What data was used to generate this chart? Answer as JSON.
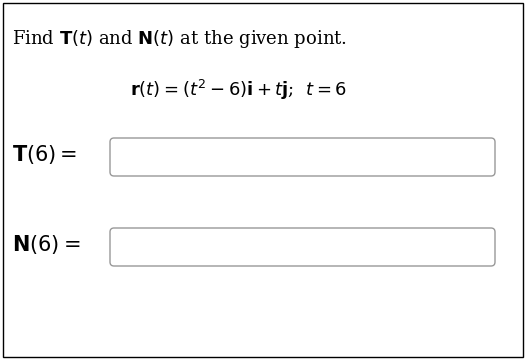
{
  "title_line1": "Find ",
  "title_bold_T": "T",
  "title_mid1": "(t) and ",
  "title_bold_N": "N",
  "title_mid2": "(t) at the given point.",
  "bg_color": "#ffffff",
  "border_color": "#000000",
  "box_line_color": "#999999",
  "text_color": "#000000",
  "title_fontsize": 13,
  "eq_fontsize": 13,
  "label_fontsize": 15,
  "fig_width": 5.28,
  "fig_height": 3.61,
  "dpi": 100
}
